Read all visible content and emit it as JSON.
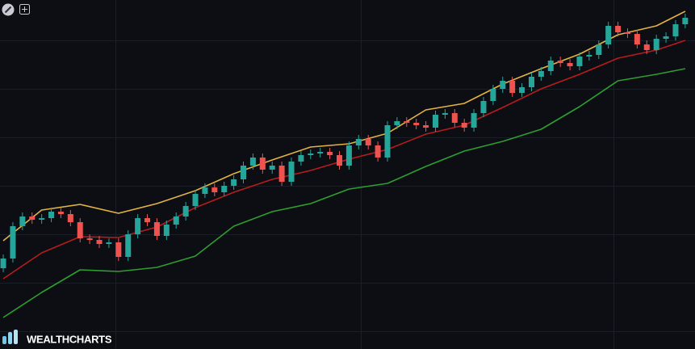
{
  "chart_data": {
    "type": "candlestick",
    "watermark": "WEALTHCHARTS",
    "xlim": [
      -0.34,
      72.02
    ],
    "ylim": [
      0,
      432
    ],
    "up_color": "#26a69a",
    "down_color": "#ef5350",
    "open": [
      100,
      112,
      152,
      164,
      160,
      162,
      170,
      167,
      157,
      137,
      135,
      130,
      132,
      114,
      142,
      162,
      157,
      140,
      154,
      164,
      177,
      192,
      200,
      194,
      202,
      210,
      227,
      237,
      222,
      227,
      207,
      232,
      240,
      242,
      244,
      240,
      227,
      252,
      260,
      252,
      237,
      277,
      282,
      280,
      277,
      274,
      290,
      292,
      280,
      274,
      292,
      307,
      322,
      332,
      317,
      324,
      337,
      344,
      357,
      354,
      350,
      362,
      364,
      377,
      400,
      392,
      390,
      377,
      370,
      384,
      387,
      402
    ],
    "high": [
      117,
      157,
      169,
      169,
      167,
      175,
      175,
      172,
      162,
      142,
      140,
      137,
      137,
      147,
      167,
      167,
      162,
      159,
      169,
      182,
      197,
      205,
      205,
      207,
      215,
      232,
      242,
      242,
      232,
      232,
      237,
      245,
      247,
      249,
      249,
      245,
      257,
      265,
      265,
      257,
      282,
      287,
      287,
      285,
      282,
      295,
      297,
      297,
      285,
      297,
      312,
      327,
      337,
      337,
      329,
      342,
      349,
      362,
      362,
      359,
      367,
      369,
      382,
      405,
      405,
      397,
      395,
      382,
      389,
      392,
      407,
      415
    ],
    "low": [
      95,
      107,
      147,
      155,
      155,
      157,
      162,
      152,
      132,
      130,
      125,
      125,
      109,
      109,
      137,
      152,
      135,
      135,
      149,
      159,
      172,
      187,
      189,
      189,
      197,
      205,
      222,
      217,
      217,
      202,
      202,
      227,
      235,
      237,
      235,
      222,
      222,
      247,
      247,
      232,
      232,
      272,
      275,
      272,
      269,
      269,
      285,
      275,
      269,
      269,
      287,
      302,
      317,
      312,
      312,
      319,
      332,
      339,
      349,
      345,
      345,
      357,
      359,
      372,
      387,
      385,
      372,
      365,
      365,
      379,
      382,
      397
    ],
    "close": [
      112,
      152,
      164,
      160,
      162,
      170,
      167,
      157,
      137,
      135,
      130,
      132,
      114,
      142,
      162,
      157,
      140,
      154,
      164,
      177,
      192,
      200,
      194,
      202,
      210,
      227,
      237,
      222,
      227,
      207,
      232,
      240,
      242,
      244,
      240,
      227,
      252,
      260,
      252,
      237,
      277,
      282,
      280,
      277,
      274,
      290,
      292,
      280,
      274,
      292,
      307,
      322,
      332,
      317,
      324,
      337,
      344,
      357,
      354,
      350,
      362,
      364,
      377,
      400,
      392,
      390,
      377,
      370,
      384,
      387,
      402,
      410
    ],
    "series": [
      {
        "color": "#e3b341",
        "x": [
          0,
          4,
          8,
          12,
          16,
          20,
          24,
          28,
          32,
          36,
          40,
          44,
          48,
          52,
          56,
          60,
          64,
          68,
          71
        ],
        "values": [
          134,
          172,
          179,
          168,
          180,
          196,
          217,
          234,
          250,
          254,
          267,
          296,
          304,
          328,
          347,
          365,
          389,
          400,
          418
        ]
      },
      {
        "color": "#b71c1c",
        "x": [
          0,
          4,
          8,
          12,
          16,
          20,
          24,
          28,
          32,
          36,
          40,
          44,
          48,
          52,
          56,
          60,
          64,
          68,
          71
        ],
        "values": [
          87,
          119,
          139,
          138,
          151,
          175,
          194,
          210,
          221,
          235,
          247,
          266,
          277,
          299,
          322,
          340,
          360,
          370,
          382
        ]
      },
      {
        "color": "#2e9e2e",
        "x": [
          0,
          4,
          8,
          12,
          16,
          20,
          24,
          28,
          32,
          36,
          40,
          44,
          48,
          52,
          56,
          60,
          64,
          68,
          71
        ],
        "values": [
          39,
          70,
          98,
          96,
          101,
          115,
          152,
          170,
          180,
          198,
          205,
          226,
          245,
          257,
          272,
          300,
          332,
          340,
          347
        ]
      }
    ]
  }
}
